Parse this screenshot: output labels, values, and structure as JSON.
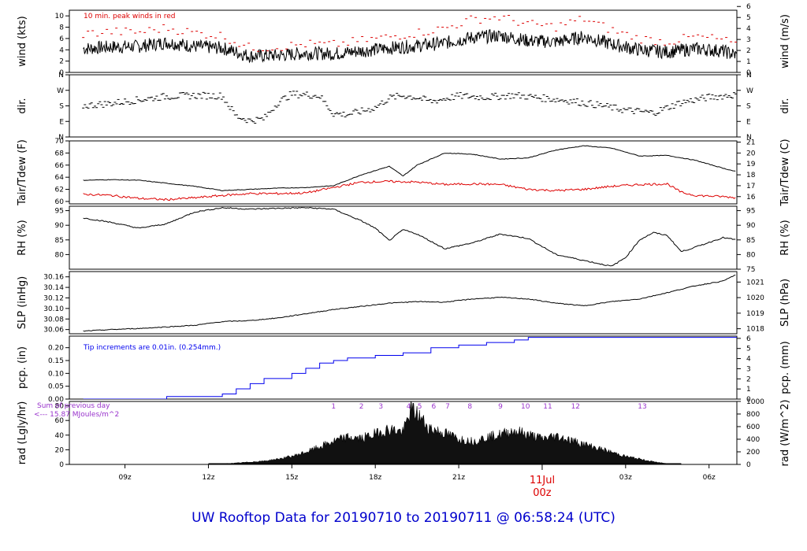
{
  "title": "UW Rooftop Data for 20190710  to  20190711 @ 06:58:24  (UTC)",
  "colors": {
    "title": "#0000cc",
    "red": "#dd0000",
    "blue": "#0000ee",
    "purple": "#9933cc",
    "black": "#000000"
  },
  "x_axis": {
    "ticks": [
      "09z",
      "12z",
      "15z",
      "18z",
      "21z",
      "03z",
      "06z"
    ],
    "day_label": "11Jul",
    "day_sub": "00z"
  },
  "chart_data": [
    {
      "type": "line",
      "name": "wind",
      "ylabel_left": "wind (kts)",
      "ylabel_right": "wind (m/s)",
      "yticks_left": [
        0,
        2,
        4,
        6,
        8,
        10
      ],
      "yticks_right": [
        0,
        1,
        2,
        3,
        4,
        5,
        6
      ],
      "ylim": [
        0,
        11
      ],
      "annotation": "10 min. peak winds in red",
      "series": [
        {
          "name": "wind",
          "color": "#000000",
          "x": [
            7.5,
            8.5,
            9.5,
            10.5,
            11.5,
            12.5,
            13.5,
            14.5,
            15.5,
            16.5,
            17.5,
            18.5,
            19.5,
            20.5,
            21.5,
            22.5,
            23.5,
            24.5,
            25.5,
            26.5,
            27.5,
            28.5,
            29.5,
            30.5,
            31
          ],
          "y": [
            4.2,
            4.5,
            4.6,
            5.3,
            4.6,
            4.3,
            2.9,
            3.0,
            3.4,
            3.3,
            3.8,
            4.3,
            4.7,
            5.2,
            6.2,
            6.5,
            5.6,
            5.4,
            6.3,
            5.0,
            4.0,
            3.6,
            4.2,
            3.8,
            3.0
          ]
        },
        {
          "name": "peak",
          "color": "#dd0000",
          "x": [
            7.5,
            8.5,
            9.5,
            10.5,
            11.5,
            12.5,
            13.5,
            14.5,
            15.5,
            16.5,
            17.5,
            18.5,
            19.5,
            20.5,
            21.5,
            22.5,
            23.5,
            24.5,
            25.5,
            26.5,
            27.5,
            28.5,
            29.5,
            30.5,
            31
          ],
          "y": [
            6.8,
            7.2,
            7.1,
            7.9,
            7.0,
            6.5,
            4.3,
            4.5,
            5.0,
            4.9,
            5.6,
            6.3,
            7.0,
            7.8,
            9.4,
            9.8,
            8.5,
            8.1,
            9.5,
            7.5,
            6.0,
            5.4,
            6.3,
            5.8,
            4.5
          ]
        }
      ]
    },
    {
      "type": "scatter",
      "name": "dir",
      "ylabel_left": "dir.",
      "ylabel_right": "dir.",
      "yticks_left": [
        "N",
        "E",
        "S",
        "W",
        "N"
      ],
      "yticks_right": [
        "N",
        "E",
        "S",
        "W",
        "N"
      ],
      "ylim": [
        0,
        360
      ],
      "series": [
        {
          "name": "direction",
          "color": "#000000",
          "x": [
            7.5,
            8.5,
            9.5,
            10.5,
            11.5,
            12.5,
            13.0,
            13.5,
            14.0,
            14.5,
            15.0,
            15.5,
            16.0,
            16.5,
            17.0,
            17.5,
            18.0,
            18.5,
            19.0,
            19.5,
            20.0,
            21.0,
            22.0,
            23.0,
            24.0,
            25.0,
            26.0,
            27.0,
            28.0,
            29.0,
            30.0,
            31.0
          ],
          "y": [
            180,
            195,
            215,
            235,
            240,
            238,
            120,
            95,
            105,
            200,
            248,
            245,
            238,
            135,
            130,
            148,
            170,
            225,
            240,
            228,
            205,
            238,
            230,
            242,
            225,
            210,
            185,
            155,
            140,
            200,
            230,
            245
          ]
        }
      ]
    },
    {
      "type": "line",
      "name": "temp",
      "ylabel_left": "Tair/Tdew (F)",
      "ylabel_right": "Tair/Tdew (C)",
      "yticks_left": [
        60,
        62,
        64,
        66,
        68,
        70
      ],
      "yticks_right": [
        16,
        17,
        18,
        19,
        20,
        21
      ],
      "ylim": [
        59.6,
        70
      ],
      "series": [
        {
          "name": "Tair",
          "color": "#000000",
          "x": [
            7.5,
            8.5,
            9.5,
            10.5,
            11.5,
            12.5,
            13.5,
            14.5,
            15.5,
            16.5,
            17.5,
            18.0,
            18.5,
            19.0,
            19.5,
            20.5,
            21.5,
            22.5,
            23.5,
            24.5,
            25.5,
            26.5,
            27.5,
            28.5,
            29.5,
            30.5,
            31
          ],
          "y": [
            63.5,
            63.6,
            63.5,
            63.0,
            62.5,
            61.8,
            62.0,
            62.2,
            62.3,
            62.6,
            64.4,
            65.1,
            65.8,
            64.2,
            66.0,
            68.0,
            67.8,
            67.0,
            67.2,
            68.5,
            69.2,
            68.8,
            67.5,
            67.6,
            66.8,
            65.5,
            64.9
          ]
        },
        {
          "name": "Tdew",
          "color": "#dd0000",
          "x": [
            7.5,
            8.5,
            9.5,
            10.5,
            11.5,
            12.5,
            13.5,
            14.5,
            15.5,
            16.5,
            17.5,
            18.5,
            19.5,
            20.5,
            21.5,
            22.5,
            23.5,
            24.5,
            25.5,
            26.5,
            27.5,
            28.5,
            29.0,
            29.5,
            30.5,
            31
          ],
          "y": [
            61.2,
            61.0,
            60.5,
            60.3,
            60.6,
            61.0,
            61.3,
            61.3,
            61.4,
            62.3,
            63.2,
            63.3,
            63.2,
            62.8,
            62.9,
            62.8,
            62.0,
            61.8,
            62.0,
            62.5,
            62.8,
            62.9,
            61.5,
            61.0,
            60.8,
            60.6
          ]
        }
      ]
    },
    {
      "type": "line",
      "name": "rh",
      "ylabel_left": "RH (%)",
      "ylabel_right": "RH (%)",
      "yticks_left": [
        80,
        85,
        90,
        95
      ],
      "yticks_right": [
        75,
        80,
        85,
        90,
        95
      ],
      "ylim": [
        75,
        96.5
      ],
      "series": [
        {
          "name": "RH",
          "color": "#000000",
          "x": [
            7.5,
            8.5,
            9.5,
            10.5,
            11.5,
            12.5,
            13.5,
            14.5,
            15.5,
            16.5,
            17.5,
            18.0,
            18.5,
            19.0,
            19.5,
            20.5,
            21.5,
            22.5,
            23.5,
            24.5,
            25.5,
            26.5,
            27.0,
            27.5,
            28.0,
            28.5,
            29.0,
            29.5,
            30.5,
            31
          ],
          "y": [
            92.5,
            91.0,
            89.0,
            90.5,
            94.5,
            96.0,
            95.5,
            95.8,
            96.0,
            95.5,
            91.5,
            89.0,
            84.8,
            88.5,
            87.0,
            82.0,
            84.0,
            87.0,
            85.5,
            80.0,
            78.0,
            76.0,
            79.0,
            85.0,
            87.5,
            86.5,
            81.0,
            82.5,
            85.8,
            85.0
          ]
        }
      ]
    },
    {
      "type": "line",
      "name": "slp",
      "ylabel_left": "SLP (inHg)",
      "ylabel_right": "SLP (hPa)",
      "yticks_left": [
        30.06,
        30.08,
        30.1,
        30.12,
        30.14,
        30.16
      ],
      "yticks_right": [
        1018,
        1019,
        1020,
        1021
      ],
      "ylim": [
        30.052,
        30.17
      ],
      "series": [
        {
          "name": "SLP",
          "color": "#000000",
          "x": [
            7.5,
            8.5,
            9.5,
            10.5,
            11.5,
            12.5,
            13.5,
            14.5,
            15.5,
            16.5,
            17.5,
            18.5,
            19.5,
            20.5,
            21.5,
            22.5,
            23.5,
            24.5,
            25.5,
            26.5,
            27.5,
            28.5,
            29.5,
            30.5,
            31
          ],
          "y": [
            30.057,
            30.06,
            30.062,
            30.065,
            30.068,
            30.075,
            30.077,
            30.082,
            30.09,
            30.098,
            30.104,
            30.11,
            30.113,
            30.112,
            30.118,
            30.121,
            30.118,
            30.11,
            30.105,
            30.113,
            30.118,
            30.13,
            30.143,
            30.152,
            30.165
          ]
        }
      ]
    },
    {
      "type": "line",
      "name": "pcp",
      "ylabel_left": "pcp. (in)",
      "ylabel_right": "pcp. (mm)",
      "yticks_left": [
        0.0,
        0.05,
        0.1,
        0.15,
        0.2
      ],
      "yticks_right": [
        0,
        1,
        2,
        3,
        4,
        5,
        6
      ],
      "ylim": [
        0,
        0.245
      ],
      "annotation": "Tip increments are 0.01in. (0.254mm.)",
      "series": [
        {
          "name": "precip",
          "color": "#0000ee",
          "x": [
            7.5,
            10.5,
            12.5,
            13.0,
            13.5,
            14.0,
            15.0,
            15.5,
            16.0,
            16.5,
            17.0,
            18.0,
            19.0,
            20.0,
            21.0,
            22.0,
            23.0,
            23.5,
            31
          ],
          "y": [
            0.0,
            0.01,
            0.02,
            0.04,
            0.06,
            0.08,
            0.1,
            0.12,
            0.14,
            0.15,
            0.16,
            0.17,
            0.18,
            0.2,
            0.21,
            0.22,
            0.23,
            0.24,
            0.24
          ]
        }
      ]
    },
    {
      "type": "area",
      "name": "rad",
      "ylabel_left": "rad (Lgly/hr)",
      "ylabel_right": "rad (W/m^2)",
      "yticks_left": [
        0,
        20,
        40,
        60,
        80
      ],
      "yticks_right": [
        0,
        200,
        400,
        600,
        800,
        1000
      ],
      "ylim": [
        0,
        86
      ],
      "annotation_top": "Sum of previous day",
      "annotation_bottom": "<--- 15.87 MJoules/m^2",
      "markers": [
        "1",
        "2",
        "3",
        "4",
        "5",
        "6",
        "7",
        "8",
        "9",
        "10",
        "11",
        "12",
        "13"
      ],
      "marker_x": [
        16.5,
        17.5,
        18.2,
        19.2,
        19.6,
        20.1,
        20.6,
        21.4,
        22.5,
        23.4,
        24.2,
        25.2,
        27.6
      ],
      "series": [
        {
          "name": "radiation",
          "color": "#000000",
          "x": [
            12.0,
            13.0,
            14.0,
            14.5,
            15.0,
            15.5,
            16.0,
            16.5,
            17.0,
            17.5,
            18.0,
            18.5,
            19.0,
            19.3,
            19.6,
            19.9,
            20.2,
            20.5,
            21.0,
            21.5,
            22.0,
            22.5,
            23.0,
            23.5,
            24.0,
            24.5,
            25.0,
            25.5,
            26.0,
            26.5,
            27.0,
            27.5,
            28.0,
            28.5,
            29.0
          ],
          "y": [
            0,
            2,
            5,
            8,
            12,
            18,
            26,
            34,
            40,
            38,
            45,
            52,
            48,
            82,
            70,
            55,
            50,
            46,
            38,
            34,
            40,
            44,
            50,
            44,
            38,
            42,
            36,
            30,
            24,
            18,
            12,
            8,
            4,
            1,
            0
          ]
        }
      ]
    }
  ]
}
